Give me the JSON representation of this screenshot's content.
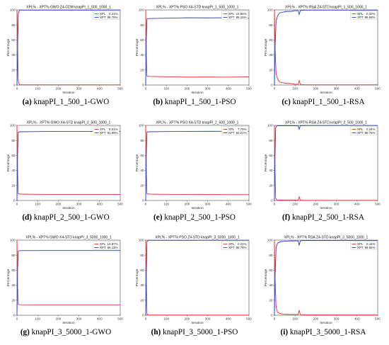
{
  "chart_data": [
    {
      "type": "line",
      "caption_label": "(a)",
      "caption_text": "knapPI_1_500_1-GWO",
      "title": "XPL% - XPT% GWO Z4-CDM knapPI_1_500_1000_1",
      "xlabel": "Iteration",
      "ylabel": "Percentage",
      "xlim": [
        0,
        500
      ],
      "ylim": [
        0,
        100
      ],
      "xticks": [
        0,
        100,
        200,
        300,
        400,
        500
      ],
      "yticks": [
        0,
        20,
        40,
        60,
        80,
        100
      ],
      "legend": "top-right",
      "series": [
        {
          "name": "XPL",
          "legend_value": "0.21%",
          "color": "#e8302a",
          "x": [
            0,
            3,
            6,
            12,
            500
          ],
          "y": [
            100,
            60,
            5,
            0.3,
            0.2
          ]
        },
        {
          "name": "XPT",
          "legend_value": "99.79%",
          "color": "#2b3bd6",
          "x": [
            0,
            3,
            6,
            12,
            500
          ],
          "y": [
            0,
            40,
            95,
            99.7,
            99.8
          ]
        }
      ]
    },
    {
      "type": "line",
      "caption_label": "(b)",
      "caption_text": "knapPI_1_500_1-PSO",
      "title": "XPL% - XPT% PSO X4-STD knapPI_1_500_1000_1",
      "xlabel": "Iteration",
      "ylabel": "Percentage",
      "xlim": [
        0,
        500
      ],
      "ylim": [
        0,
        100
      ],
      "xticks": [
        0,
        100,
        200,
        300,
        400,
        500
      ],
      "yticks": [
        0,
        20,
        40,
        60,
        80,
        100
      ],
      "legend": "top-right",
      "series": [
        {
          "name": "XPL",
          "legend_value": "10.85%",
          "color": "#e8302a",
          "x": [
            0,
            3,
            6,
            15,
            100,
            200,
            300,
            400,
            500
          ],
          "y": [
            100,
            40,
            12,
            11.5,
            11,
            10.5,
            10.6,
            10.4,
            10.9
          ]
        },
        {
          "name": "XPT",
          "legend_value": "89.15%",
          "color": "#2b3bd6",
          "x": [
            0,
            3,
            6,
            15,
            100,
            200,
            300,
            400,
            500
          ],
          "y": [
            0,
            60,
            88,
            88.5,
            89,
            89.5,
            89.4,
            89.6,
            89.1
          ]
        }
      ]
    },
    {
      "type": "line",
      "caption_label": "(c)",
      "caption_text": "knapPI_1_500_1-RSA",
      "title": "XPL% - XPT% RSA Z4-STD knapPI_1_500_1000_1",
      "xlabel": "Iteration",
      "ylabel": "Percentage",
      "xlim": [
        0,
        500
      ],
      "ylim": [
        0,
        100
      ],
      "xticks": [
        0,
        100,
        200,
        300,
        400,
        500
      ],
      "yticks": [
        0,
        20,
        40,
        60,
        80,
        100
      ],
      "legend": "top-right",
      "series": [
        {
          "name": "XPL",
          "legend_value": "0.32%",
          "color": "#e8302a",
          "x": [
            0,
            3,
            8,
            15,
            25,
            40,
            60,
            80,
            100,
            115,
            120,
            125,
            130,
            150,
            500
          ],
          "y": [
            100,
            50,
            15,
            8,
            4,
            3,
            2,
            2,
            1,
            1,
            6,
            1,
            0.5,
            0.3,
            0.3
          ]
        },
        {
          "name": "XPT",
          "legend_value": "99.68%",
          "color": "#2b3bd6",
          "x": [
            0,
            3,
            8,
            15,
            25,
            40,
            60,
            80,
            100,
            115,
            120,
            125,
            130,
            150,
            500
          ],
          "y": [
            0,
            50,
            85,
            92,
            96,
            97,
            98,
            98,
            99,
            99,
            94,
            99,
            99.5,
            99.7,
            99.7
          ]
        }
      ]
    },
    {
      "type": "line",
      "caption_label": "(d)",
      "caption_text": "knapPI_2_500_1-GWO",
      "title": "XPL% - XPT% GWO X4-STD knapPI_2_500_1000_1",
      "xlabel": "Iteration",
      "ylabel": "Percentage",
      "xlim": [
        0,
        500
      ],
      "ylim": [
        0,
        100
      ],
      "xticks": [
        0,
        100,
        200,
        300,
        400,
        500
      ],
      "yticks": [
        0,
        20,
        40,
        60,
        80,
        100
      ],
      "legend": "top-right",
      "series": [
        {
          "name": "XPL",
          "legend_value": "8.01%",
          "color": "#e8302a",
          "x": [
            0,
            3,
            6,
            15,
            100,
            200,
            300,
            400,
            500
          ],
          "y": [
            100,
            40,
            9,
            8.5,
            8.2,
            8,
            8.1,
            8,
            8
          ]
        },
        {
          "name": "XPT",
          "legend_value": "91.99%",
          "color": "#2b3bd6",
          "x": [
            0,
            3,
            6,
            15,
            100,
            200,
            300,
            400,
            500
          ],
          "y": [
            0,
            60,
            91,
            91.5,
            91.8,
            92,
            91.9,
            92,
            92
          ]
        }
      ]
    },
    {
      "type": "line",
      "caption_label": "(e)",
      "caption_text": "knapPI_2_500_1-PSO",
      "title": "XPL% - XPT% PSO X4-STD knapPI_2_500_1000_1",
      "xlabel": "Iteration",
      "ylabel": "Percentage",
      "xlim": [
        0,
        500
      ],
      "ylim": [
        0,
        100
      ],
      "xticks": [
        0,
        100,
        200,
        300,
        400,
        500
      ],
      "yticks": [
        0,
        20,
        40,
        60,
        80,
        100
      ],
      "legend": "top-right",
      "series": [
        {
          "name": "XPL",
          "legend_value": "7.79%",
          "color": "#e8302a",
          "x": [
            0,
            3,
            6,
            15,
            100,
            200,
            300,
            400,
            500
          ],
          "y": [
            100,
            40,
            9,
            8.5,
            8.2,
            8,
            7.9,
            7.8,
            7.8
          ]
        },
        {
          "name": "XPT",
          "legend_value": "92.21%",
          "color": "#2b3bd6",
          "x": [
            0,
            3,
            6,
            15,
            100,
            200,
            300,
            400,
            500
          ],
          "y": [
            0,
            60,
            91,
            91.5,
            91.8,
            92,
            92.1,
            92.2,
            92.2
          ]
        }
      ]
    },
    {
      "type": "line",
      "caption_label": "(f)",
      "caption_text": "knapPI_2_500_1-RSA",
      "title": "XPL% - XPT% RSA Z4-STD knapPI_2_500_1000_1",
      "xlabel": "Iteration",
      "ylabel": "Percentage",
      "xlim": [
        0,
        500
      ],
      "ylim": [
        0,
        100
      ],
      "xticks": [
        0,
        100,
        200,
        300,
        400,
        500
      ],
      "yticks": [
        0,
        20,
        40,
        60,
        80,
        100
      ],
      "legend": "top-right",
      "series": [
        {
          "name": "XPL",
          "legend_value": "0.24%",
          "color": "#e8302a",
          "x": [
            0,
            3,
            6,
            12,
            115,
            120,
            125,
            140,
            500
          ],
          "y": [
            100,
            40,
            3,
            0.5,
            0.5,
            5,
            0.5,
            0.3,
            0.2
          ]
        },
        {
          "name": "XPT",
          "legend_value": "99.76%",
          "color": "#2b3bd6",
          "x": [
            0,
            3,
            6,
            12,
            115,
            120,
            125,
            140,
            500
          ],
          "y": [
            0,
            60,
            97,
            99.5,
            99.5,
            95,
            99.5,
            99.7,
            99.8
          ]
        }
      ]
    },
    {
      "type": "line",
      "caption_label": "(g)",
      "caption_text": "knapPI_3_5000_1-GWO",
      "title": "XPL% - XPT% GWO X4-STD knapPI_3_5000_1000_1",
      "xlabel": "Iteration",
      "ylabel": "Percentage",
      "xlim": [
        0,
        500
      ],
      "ylim": [
        0,
        100
      ],
      "xticks": [
        0,
        100,
        200,
        300,
        400,
        500
      ],
      "yticks": [
        0,
        20,
        40,
        60,
        80,
        100
      ],
      "legend": "top-right",
      "series": [
        {
          "name": "XPL",
          "legend_value": "13.87%",
          "color": "#e8302a",
          "x": [
            0,
            3,
            6,
            15,
            100,
            200,
            300,
            400,
            500
          ],
          "y": [
            100,
            40,
            14.5,
            14,
            13.9,
            13.9,
            13.9,
            13.9,
            13.9
          ]
        },
        {
          "name": "XPT",
          "legend_value": "86.13%",
          "color": "#2b3bd6",
          "x": [
            0,
            3,
            6,
            15,
            100,
            200,
            300,
            400,
            500
          ],
          "y": [
            0,
            60,
            85.5,
            86,
            86.1,
            86.1,
            86.1,
            86.1,
            86.1
          ]
        }
      ]
    },
    {
      "type": "line",
      "caption_label": "(h)",
      "caption_text": "knapPI_3_5000_1-PSO",
      "title": "XPL% - XPT% PSO Z4-STD knapPI_3_5000_1000_1",
      "xlabel": "Iteration",
      "ylabel": "Percentage",
      "xlim": [
        0,
        500
      ],
      "ylim": [
        0,
        100
      ],
      "xticks": [
        0,
        100,
        200,
        300,
        400,
        500
      ],
      "yticks": [
        0,
        20,
        40,
        60,
        80,
        100
      ],
      "legend": "top-right",
      "series": [
        {
          "name": "XPL",
          "legend_value": "0.21%",
          "color": "#e8302a",
          "x": [
            0,
            3,
            6,
            12,
            500
          ],
          "y": [
            100,
            50,
            2,
            0.3,
            0.2
          ]
        },
        {
          "name": "XPT",
          "legend_value": "99.79%",
          "color": "#2b3bd6",
          "x": [
            0,
            3,
            6,
            12,
            500
          ],
          "y": [
            0,
            50,
            98,
            99.7,
            99.8
          ]
        }
      ]
    },
    {
      "type": "line",
      "caption_label": "(i)",
      "caption_text": "knapPI_3_5000_1-RSA",
      "title": "XPL% - XPT% RSA Z4-STD knapPI_3_5000_1000_1",
      "xlabel": "Iteration",
      "ylabel": "Percentage",
      "xlim": [
        0,
        500
      ],
      "ylim": [
        0,
        100
      ],
      "xticks": [
        0,
        100,
        200,
        300,
        400,
        500
      ],
      "yticks": [
        0,
        20,
        40,
        60,
        80,
        100
      ],
      "legend": "top-right",
      "series": [
        {
          "name": "XPL",
          "legend_value": "0.44%",
          "color": "#e8302a",
          "x": [
            0,
            3,
            8,
            15,
            30,
            50,
            80,
            100,
            115,
            120,
            125,
            130,
            150,
            500
          ],
          "y": [
            100,
            50,
            10,
            4,
            2,
            1.5,
            1,
            1,
            1,
            7,
            1,
            0.6,
            0.5,
            0.4
          ]
        },
        {
          "name": "XPT",
          "legend_value": "99.56%",
          "color": "#2b3bd6",
          "x": [
            0,
            3,
            8,
            15,
            30,
            50,
            80,
            100,
            115,
            120,
            125,
            130,
            150,
            500
          ],
          "y": [
            0,
            50,
            90,
            96,
            98,
            98.5,
            99,
            99,
            99,
            93,
            99,
            99.4,
            99.5,
            99.6
          ]
        }
      ]
    }
  ]
}
